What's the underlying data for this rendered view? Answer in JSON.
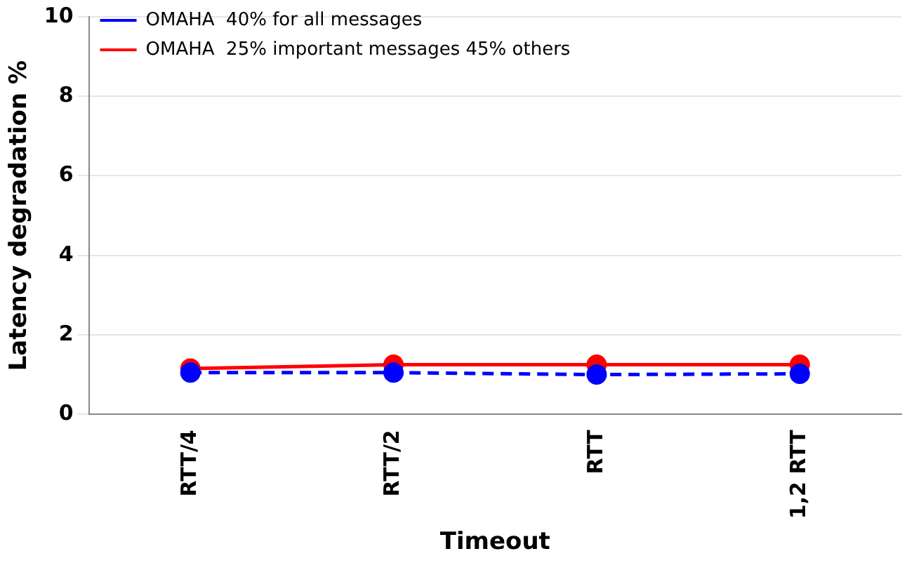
{
  "chart_data": {
    "type": "line",
    "xlabel": "Timeout",
    "ylabel": "Latency degradation %",
    "categories": [
      "RTT/4",
      "RTT/2",
      "RTT",
      "1,2 RTT"
    ],
    "ylim": [
      0,
      10
    ],
    "yticks": [
      0,
      2,
      4,
      6,
      8,
      10
    ],
    "grid": "y",
    "legend": "top left",
    "marker": "circle",
    "series": [
      {
        "name": "OMAHA  40% for all messages",
        "color": "#0000ff",
        "line_style": "dashed",
        "values": [
          1.05,
          1.05,
          1.0,
          1.02
        ]
      },
      {
        "name": "OMAHA  25% important messages 45% others",
        "color": "#ff0000",
        "line_style": "solid",
        "values": [
          1.15,
          1.25,
          1.25,
          1.25
        ]
      }
    ]
  }
}
